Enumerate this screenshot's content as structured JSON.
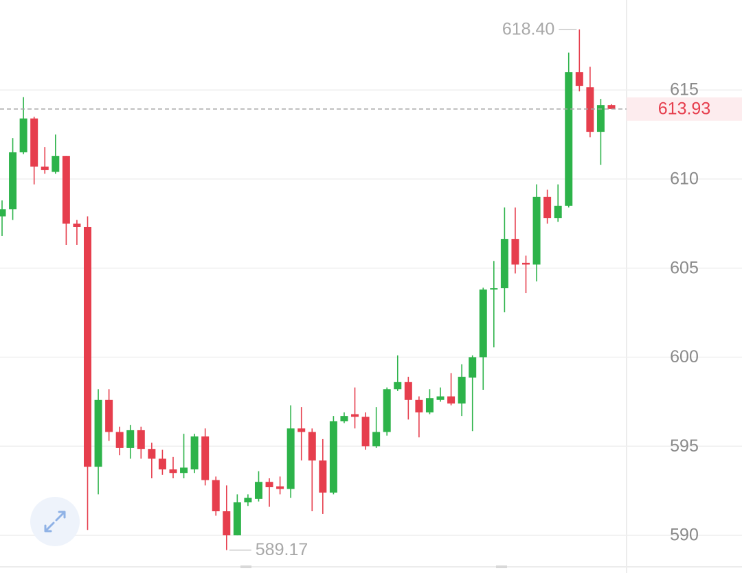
{
  "chart_data": {
    "type": "candlestick",
    "up_color": "#2db34a",
    "down_color": "#e63e4d",
    "grid": true,
    "ylim": [
      588.27,
      620.05
    ],
    "yticks": [
      590,
      595,
      600,
      605,
      610,
      615
    ],
    "high_label": "618.40",
    "low_label": "589.17",
    "last_label": "613.93",
    "categories": [
      null,
      null,
      null,
      null,
      null,
      null,
      null,
      null,
      null,
      null,
      null,
      null,
      null,
      null,
      null,
      null,
      null,
      null,
      null,
      null,
      null,
      null,
      null,
      null,
      null,
      null,
      null,
      null,
      null,
      null,
      null,
      null,
      null,
      null,
      null,
      null,
      null,
      null,
      null,
      null,
      null,
      null,
      null,
      null,
      null,
      null,
      null,
      null,
      null,
      null,
      null,
      null,
      null,
      null,
      null,
      null,
      null,
      null
    ],
    "open": [
      607.9,
      608.3,
      611.5,
      613.4,
      610.7,
      610.4,
      611.3,
      607.5,
      607.3,
      593.85,
      597.6,
      595.8,
      594.9,
      595.9,
      594.85,
      594.3,
      593.7,
      593.5,
      593.7,
      595.55,
      593.1,
      591.35,
      590.0,
      591.85,
      592.05,
      593.0,
      592.75,
      592.6,
      596.0,
      595.8,
      594.2,
      592.4,
      596.4,
      596.8,
      596.65,
      595.0,
      595.8,
      598.2,
      598.6,
      597.6,
      596.9,
      597.6,
      597.8,
      597.4,
      598.85,
      600.0,
      603.8,
      603.87,
      606.64,
      605.3,
      605.2,
      609.0,
      607.8,
      608.5,
      616.0,
      615.15,
      612.65,
      614.15
    ],
    "high": [
      608.8,
      612.3,
      614.6,
      613.5,
      611.8,
      612.5,
      611.3,
      607.7,
      607.9,
      598.2,
      598.2,
      596.1,
      596.2,
      596.1,
      595.2,
      594.8,
      594.4,
      595.7,
      595.7,
      596.0,
      593.3,
      592.8,
      592.3,
      592.3,
      593.6,
      593.2,
      593.3,
      597.3,
      597.2,
      596.0,
      595.4,
      596.7,
      596.9,
      598.3,
      596.9,
      597.2,
      598.3,
      600.1,
      598.9,
      597.8,
      598.2,
      598.3,
      599.1,
      599.6,
      600.1,
      603.9,
      605.4,
      608.4,
      608.4,
      605.7,
      609.7,
      609.4,
      609.7,
      617.1,
      618.4,
      616.3,
      614.5,
      614.2
    ],
    "low": [
      606.8,
      607.7,
      611.4,
      609.7,
      610.3,
      610.3,
      606.3,
      606.3,
      590.3,
      592.3,
      595.3,
      594.5,
      594.3,
      594.3,
      593.2,
      593.4,
      593.2,
      593.2,
      593.5,
      592.8,
      591.1,
      589.17,
      590.0,
      591.65,
      591.9,
      591.6,
      592.3,
      592.1,
      594.2,
      591.35,
      591.2,
      592.3,
      596.3,
      596.0,
      594.8,
      594.9,
      595.6,
      598.1,
      596.5,
      595.5,
      596.8,
      597.5,
      597.3,
      596.7,
      595.85,
      598.17,
      600.55,
      602.52,
      604.7,
      603.6,
      604.25,
      607.5,
      607.6,
      608.4,
      614.92,
      612.34,
      610.8,
      613.92
    ],
    "close": [
      608.3,
      611.5,
      613.4,
      610.7,
      610.5,
      611.3,
      607.5,
      607.3,
      593.85,
      597.6,
      595.8,
      594.9,
      595.9,
      594.85,
      594.3,
      593.7,
      593.5,
      593.8,
      595.55,
      593.1,
      591.35,
      590.0,
      591.85,
      592.1,
      593.0,
      592.7,
      592.6,
      596.0,
      595.8,
      594.2,
      592.4,
      596.4,
      596.7,
      596.65,
      595.0,
      595.8,
      598.2,
      598.6,
      597.6,
      596.9,
      597.7,
      597.8,
      597.4,
      598.9,
      600.0,
      603.8,
      603.87,
      606.64,
      605.2,
      605.2,
      609.0,
      607.8,
      608.5,
      616.0,
      615.23,
      612.65,
      614.15,
      613.93
    ]
  }
}
